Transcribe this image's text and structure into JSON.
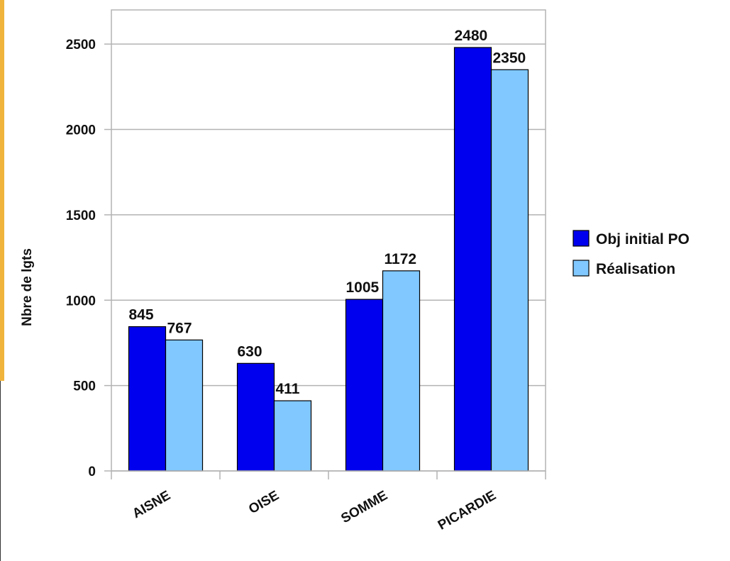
{
  "chart_data": {
    "type": "bar",
    "categories": [
      "AISNE",
      "OISE",
      "SOMME",
      "PICARDIE"
    ],
    "series": [
      {
        "name": "Obj initial PO",
        "values": [
          845,
          630,
          1005,
          2480
        ],
        "color": "#0000ee"
      },
      {
        "name": "Réalisation",
        "values": [
          767,
          411,
          1172,
          2350
        ],
        "color": "#80c8ff"
      }
    ],
    "ylabel": "Nbre de lgts",
    "xlabel": "",
    "title": "",
    "ylim": [
      0,
      2700
    ],
    "yticks": [
      0,
      500,
      1000,
      1500,
      2000,
      2500
    ],
    "grid": true,
    "legend_position": "right"
  }
}
